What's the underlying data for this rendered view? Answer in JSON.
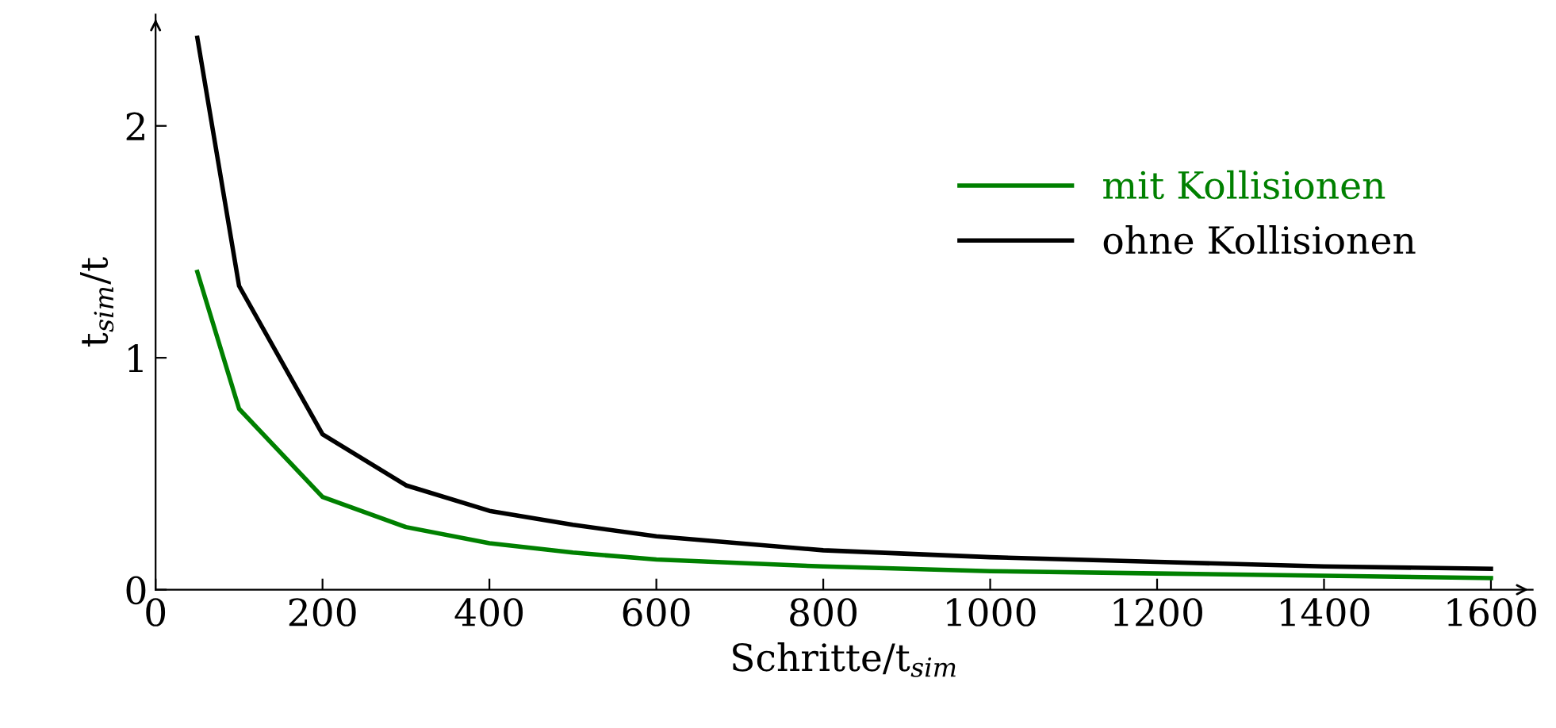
{
  "chart_data": {
    "type": "line",
    "xlabel": "Schritte/t$_{sim}$",
    "ylabel": "t$_{sim}$/t",
    "x": [
      50,
      100,
      200,
      300,
      400,
      500,
      600,
      800,
      1000,
      1200,
      1400,
      1600
    ],
    "series": [
      {
        "name": "mit Kollisionen",
        "color": "#008000",
        "values": [
          1.37,
          0.78,
          0.4,
          0.27,
          0.2,
          0.16,
          0.13,
          0.1,
          0.08,
          0.07,
          0.06,
          0.05
        ]
      },
      {
        "name": "ohne Kollisionen",
        "color": "#000000",
        "values": [
          2.38,
          1.31,
          0.67,
          0.45,
          0.34,
          0.28,
          0.23,
          0.17,
          0.14,
          0.12,
          0.1,
          0.09
        ]
      }
    ],
    "xlim": [
      0,
      1650
    ],
    "ylim": [
      0,
      2.48
    ],
    "xticks": [
      0,
      200,
      400,
      600,
      800,
      1000,
      1200,
      1400,
      1600
    ],
    "yticks": [
      0,
      1,
      2
    ],
    "legend": "right",
    "grid": false,
    "marker": "none",
    "line_style": "solid"
  }
}
